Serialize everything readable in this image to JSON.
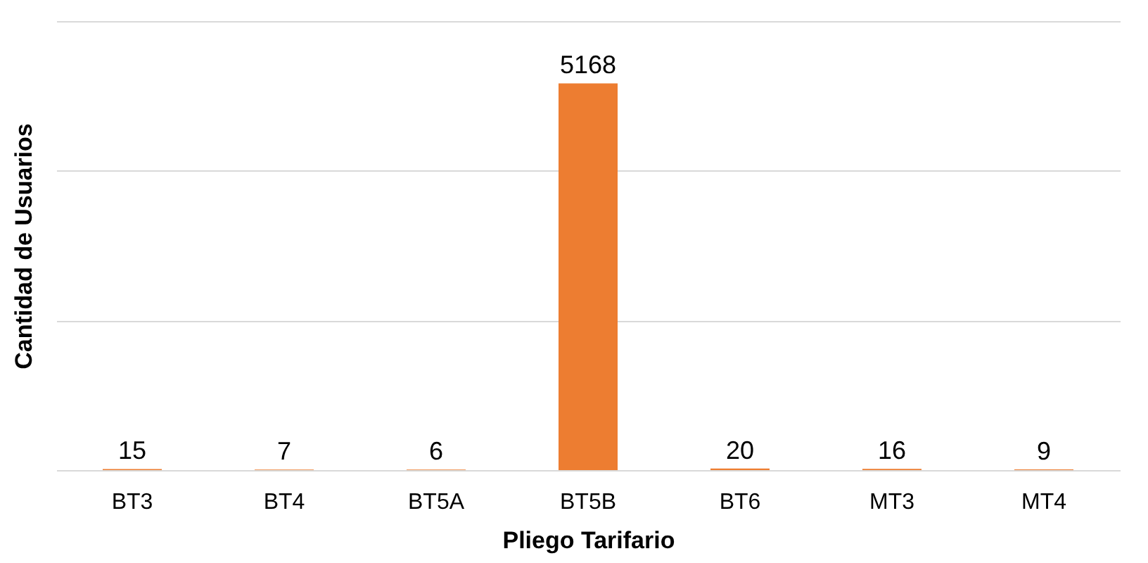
{
  "chart_data": {
    "type": "bar",
    "xlabel": "Pliego Tarifario",
    "ylabel": "Cantidad de Usuarios",
    "categories": [
      "BT3",
      "BT4",
      "BT5A",
      "BT5B",
      "BT6",
      "MT3",
      "MT4"
    ],
    "values": [
      15,
      7,
      6,
      5168,
      20,
      16,
      9
    ],
    "color": "#ed7d31",
    "data_labels": true,
    "grid": "y",
    "ylim": [
      0,
      6000
    ],
    "yticks": [
      {
        "value": 0,
        "label": null
      },
      {
        "value": 2000,
        "label": null
      },
      {
        "value": 4000,
        "label": null
      },
      {
        "value": 6000,
        "label": null
      }
    ],
    "tick_labels": "x"
  }
}
